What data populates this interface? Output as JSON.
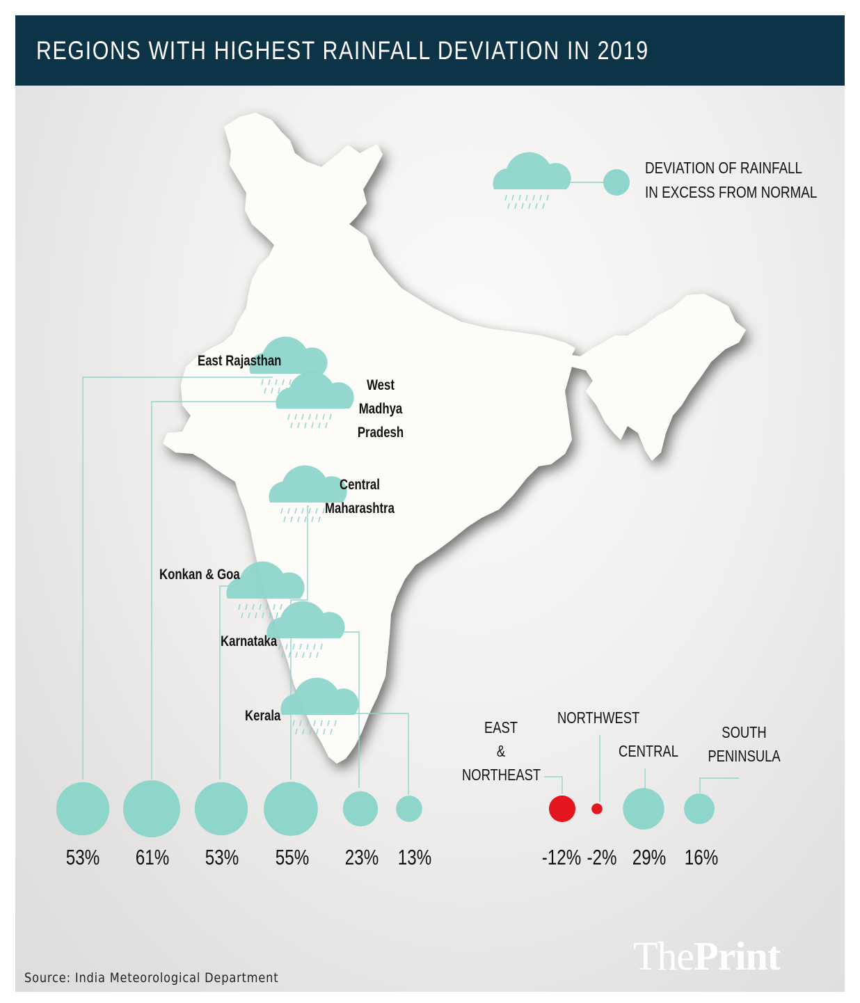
{
  "title": "REGIONS WITH HIGHEST RAINFALL DEVIATION IN 2019",
  "legend": {
    "line1": "DEVIATION OF RAINFALL",
    "line2": "IN EXCESS FROM NORMAL",
    "cloud_color": "#8ed5cc",
    "circle_color": "#8ed5cc"
  },
  "regions": [
    {
      "name": "East Rajasthan",
      "deviation": "53%",
      "value": 53
    },
    {
      "name_lines": [
        "West",
        "Madhya",
        "Pradesh"
      ],
      "deviation": "61%",
      "value": 61
    },
    {
      "name_lines": [
        "Konkan & Goa"
      ],
      "deviation": "53%",
      "value": 53
    },
    {
      "name_lines": [
        "Central",
        "Maharashtra"
      ],
      "deviation": "55%",
      "value": 55
    },
    {
      "name_lines": [
        "Karnataka"
      ],
      "deviation": "23%",
      "value": 23
    },
    {
      "name_lines": [
        "Kerala"
      ],
      "deviation": "13%",
      "value": 13
    }
  ],
  "zones": [
    {
      "name_lines": [
        "EAST",
        "&",
        "NORTHEAST"
      ],
      "deviation": "-12%",
      "value": -12
    },
    {
      "name_lines": [
        "NORTHWEST"
      ],
      "deviation": "-2%",
      "value": -2
    },
    {
      "name_lines": [
        "CENTRAL"
      ],
      "deviation": "29%",
      "value": 29
    },
    {
      "name_lines": [
        "SOUTH",
        "PENINSULA"
      ],
      "deviation": "16%",
      "value": 16
    }
  ],
  "colors": {
    "excess": "#8ed5cc",
    "deficit": "#e3161f",
    "header": "#0d3346",
    "map_fill": "#fdfcf8"
  },
  "source": "Source: India Meteorological Department",
  "brand": {
    "part1": "The",
    "part2": "Print"
  }
}
